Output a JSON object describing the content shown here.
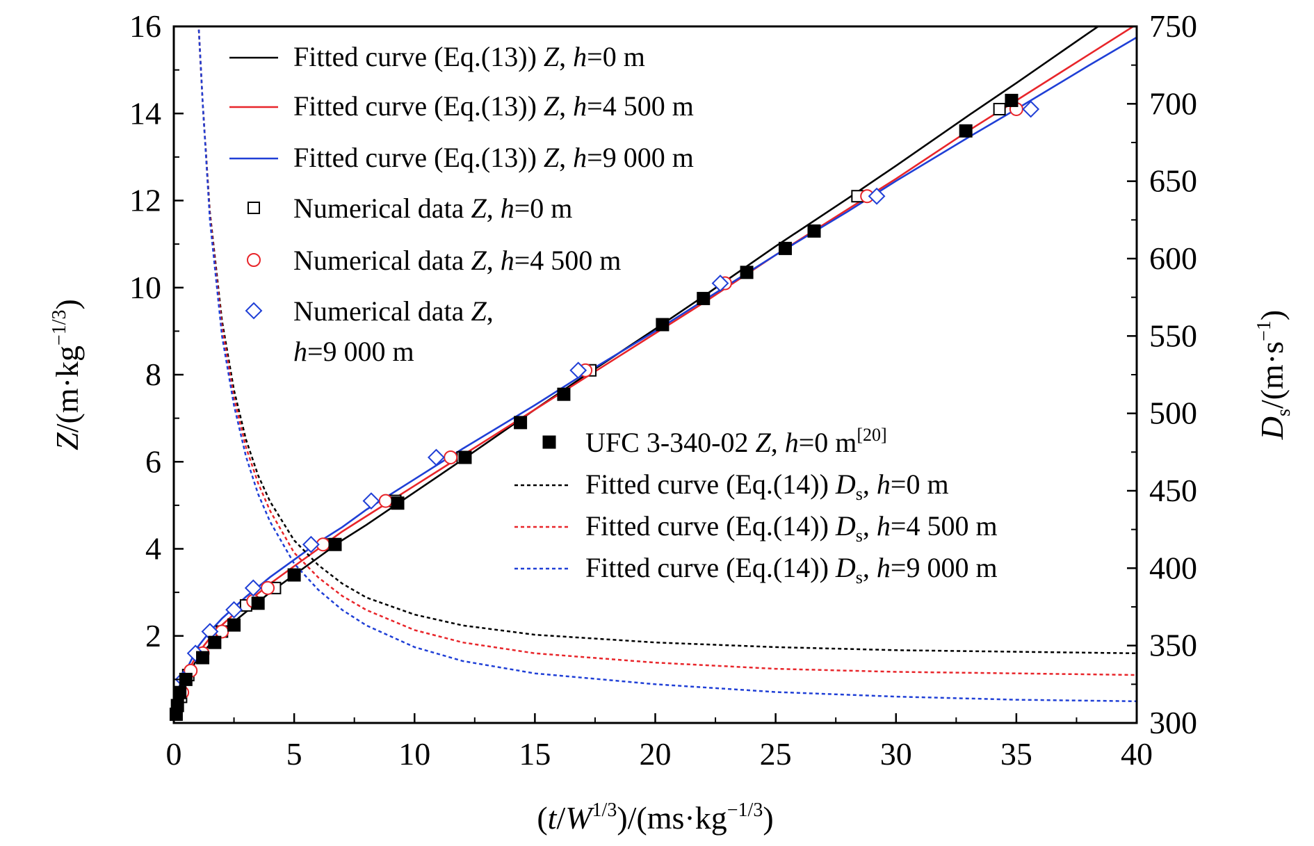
{
  "chart_data": {
    "type": "line",
    "xlabel": {
      "open": "(",
      "t": "t",
      "slash": "/",
      "W": "W",
      "sup": "1/3",
      "rest": ")/(ms·kg",
      "sup2": "−1/3",
      "close": ")"
    },
    "ylabel_left": {
      "Z": "Z",
      "rest": "/(m·kg",
      "sup": "−1/3",
      "close": ")"
    },
    "ylabel_right": {
      "D": "D",
      "sub": "s",
      "rest": "/(m·s",
      "sup": "−1",
      "close": ")"
    },
    "xlim": [
      0,
      40
    ],
    "ylim_left": [
      0,
      16
    ],
    "ylim_right": [
      300,
      750
    ],
    "xticks": [
      "0",
      "5",
      "10",
      "15",
      "20",
      "25",
      "30",
      "35",
      "40"
    ],
    "yticks_left": [
      "2",
      "4",
      "6",
      "8",
      "10",
      "12",
      "14",
      "16"
    ],
    "yticks_right": [
      "300",
      "350",
      "400",
      "450",
      "500",
      "550",
      "600",
      "650",
      "700",
      "750"
    ],
    "legend_upper": [
      {
        "key": "fz0",
        "parts": [
          "Fitted curve (Eq.(13)) ",
          "Z",
          ", ",
          "h",
          "=0 m"
        ]
      },
      {
        "key": "fz1",
        "parts": [
          "Fitted curve (Eq.(13)) ",
          "Z",
          ", ",
          "h",
          "=4 500 m"
        ]
      },
      {
        "key": "fz2",
        "parts": [
          "Fitted curve (Eq.(13)) ",
          "Z",
          ", ",
          "h",
          "=9 000 m"
        ]
      },
      {
        "key": "nz0",
        "parts": [
          "Numerical data ",
          "Z",
          ", ",
          "h",
          "=0 m"
        ]
      },
      {
        "key": "nz1",
        "parts": [
          "Numerical data ",
          "Z",
          ", ",
          "h",
          "=4 500 m"
        ]
      },
      {
        "key": "nz2",
        "parts": [
          "Numerical data ",
          "Z",
          ",",
          "h",
          "=9 000 m"
        ]
      }
    ],
    "legend_lower": [
      {
        "key": "ufc",
        "parts": [
          "UFC 3-340-02 ",
          "Z",
          ", ",
          "h",
          "=0 m",
          "[20]"
        ]
      },
      {
        "key": "fd0",
        "parts": [
          "Fitted curve (Eq.(14)) ",
          "D",
          "s",
          ", ",
          "h",
          "=0 m"
        ]
      },
      {
        "key": "fd1",
        "parts": [
          "Fitted curve (Eq.(14)) ",
          "D",
          "s",
          ", ",
          "h",
          "=4 500 m"
        ]
      },
      {
        "key": "fd2",
        "parts": [
          "Fitted curve (Eq.(14)) ",
          "D",
          "s",
          ", ",
          "h",
          "=9 000 m"
        ]
      }
    ],
    "colors": {
      "h0": "#000000",
      "h4500": "#e8252a",
      "h9000": "#1f3fd6"
    },
    "series": [
      {
        "key": "fz0",
        "name": "Fitted curve (Eq.(13)) Z, h=0 m",
        "axis": "left",
        "style": "solid",
        "color": "#000000",
        "x": [
          0.05,
          0.2,
          0.5,
          1,
          1.5,
          2,
          3,
          4,
          5,
          6,
          7,
          8,
          10,
          12,
          15,
          17,
          20,
          22,
          25,
          28,
          30,
          33,
          35,
          38,
          40
        ],
        "y": [
          0.25,
          0.6,
          1.0,
          1.5,
          1.8,
          2.1,
          2.55,
          3.0,
          3.4,
          3.8,
          4.2,
          4.55,
          5.3,
          6.05,
          7.2,
          7.95,
          9.05,
          9.8,
          10.95,
          12.05,
          12.8,
          13.95,
          14.7,
          15.85,
          16.6
        ]
      },
      {
        "key": "fz1",
        "name": "Fitted curve (Eq.(13)) Z, h=4 500 m",
        "axis": "left",
        "style": "solid",
        "color": "#e8252a",
        "x": [
          0.05,
          0.2,
          0.5,
          1,
          1.5,
          2,
          3,
          4,
          5,
          6,
          7,
          8,
          10,
          12,
          15,
          17,
          20,
          22,
          25,
          28,
          30,
          33,
          35,
          38,
          40
        ],
        "y": [
          0.3,
          0.7,
          1.1,
          1.6,
          1.95,
          2.25,
          2.75,
          3.2,
          3.6,
          4.0,
          4.4,
          4.75,
          5.45,
          6.15,
          7.2,
          7.9,
          8.95,
          9.65,
          10.75,
          11.8,
          12.5,
          13.6,
          14.3,
          15.35,
          16.05
        ]
      },
      {
        "key": "fz2",
        "name": "Fitted curve (Eq.(13)) Z, h=9 000 m",
        "axis": "left",
        "style": "solid",
        "color": "#1f3fd6",
        "x": [
          0.05,
          0.2,
          0.5,
          1,
          1.5,
          2,
          3,
          4,
          5,
          6,
          7,
          8,
          10,
          12,
          15,
          17,
          20,
          22,
          25,
          28,
          30,
          33,
          35,
          38,
          40
        ],
        "y": [
          0.35,
          0.8,
          1.2,
          1.75,
          2.1,
          2.4,
          2.9,
          3.35,
          3.75,
          4.15,
          4.5,
          4.9,
          5.6,
          6.3,
          7.3,
          8.0,
          9.0,
          9.7,
          10.75,
          11.75,
          12.45,
          13.45,
          14.1,
          15.1,
          15.75
        ]
      },
      {
        "key": "fd0",
        "name": "Fitted curve (Eq.(14)) Ds, h=0 m",
        "axis": "right",
        "style": "dotted",
        "color": "#000000",
        "x": [
          1.0,
          1.2,
          1.5,
          2,
          2.5,
          3,
          3.5,
          4,
          5,
          6,
          7,
          8,
          10,
          12,
          15,
          20,
          25,
          30,
          35,
          40
        ],
        "y": [
          760,
          700,
          630,
          560,
          515,
          483,
          460,
          443,
          418,
          402,
          390,
          381,
          370,
          363,
          357,
          352,
          349,
          347,
          346,
          345
        ]
      },
      {
        "key": "fd1",
        "name": "Fitted curve (Eq.(14)) Ds, h=4 500 m",
        "axis": "right",
        "style": "dotted",
        "color": "#e8252a",
        "x": [
          1.0,
          1.2,
          1.5,
          2,
          2.5,
          3,
          3.5,
          4,
          5,
          6,
          7,
          8,
          10,
          12,
          15,
          20,
          25,
          30,
          35,
          40
        ],
        "y": [
          760,
          700,
          628,
          556,
          510,
          478,
          455,
          437,
          410,
          394,
          382,
          373,
          360,
          352,
          345,
          339,
          335,
          333,
          332,
          331
        ]
      },
      {
        "key": "fd2",
        "name": "Fitted curve (Eq.(14)) Ds, h=9 000 m",
        "axis": "right",
        "style": "dotted",
        "color": "#1f3fd6",
        "x": [
          1.0,
          1.2,
          1.5,
          2,
          2.5,
          3,
          3.5,
          4,
          5,
          6,
          7,
          8,
          10,
          12,
          15,
          20,
          25,
          30,
          35,
          40
        ],
        "y": [
          760,
          700,
          625,
          550,
          505,
          472,
          448,
          430,
          403,
          386,
          373,
          363,
          349,
          340,
          332,
          325,
          320,
          317,
          315,
          314
        ]
      }
    ],
    "points": [
      {
        "key": "nz0",
        "name": "Numerical data Z, h=0 m",
        "marker": "square-open",
        "color": "#000000",
        "x": [
          0.3,
          0.6,
          1.1,
          2.0,
          3.0,
          4.2,
          6.4,
          9.2,
          12.0,
          17.3,
          28.4,
          34.3
        ],
        "y": [
          0.6,
          1.1,
          1.6,
          2.1,
          2.7,
          3.1,
          4.1,
          5.1,
          6.1,
          8.1,
          12.1,
          14.1
        ]
      },
      {
        "key": "nz1",
        "name": "Numerical data Z, h=4 500 m",
        "marker": "circle-open",
        "color": "#e8252a",
        "x": [
          0.35,
          0.7,
          1.2,
          2.0,
          3.3,
          3.9,
          6.2,
          8.8,
          11.5,
          17.1,
          22.9,
          28.8,
          35.0
        ],
        "y": [
          0.7,
          1.2,
          1.6,
          2.1,
          2.8,
          3.1,
          4.1,
          5.1,
          6.1,
          8.1,
          10.1,
          12.1,
          14.1
        ]
      },
      {
        "key": "nz2",
        "name": "Numerical data Z, h=9 000 m",
        "marker": "diamond-open",
        "color": "#1f3fd6",
        "x": [
          0.4,
          0.9,
          1.5,
          2.5,
          3.3,
          5.7,
          8.2,
          10.9,
          16.8,
          22.7,
          29.2,
          35.6
        ],
        "y": [
          1.0,
          1.6,
          2.1,
          2.6,
          3.1,
          4.1,
          5.1,
          6.1,
          8.1,
          10.1,
          12.1,
          14.1
        ]
      },
      {
        "key": "ufc",
        "name": "UFC 3-340-02 Z, h=0 m",
        "marker": "square-filled",
        "color": "#000000",
        "x": [
          0.1,
          0.15,
          0.25,
          0.5,
          1.2,
          1.7,
          2.5,
          3.5,
          5.0,
          6.7,
          9.3,
          12.1,
          14.4,
          16.2,
          20.3,
          22.0,
          23.8,
          25.4,
          26.6,
          32.9,
          34.8
        ],
        "y": [
          0.2,
          0.4,
          0.7,
          1.0,
          1.5,
          1.85,
          2.25,
          2.75,
          3.4,
          4.1,
          5.05,
          6.1,
          6.9,
          7.55,
          9.15,
          9.75,
          10.35,
          10.9,
          11.3,
          13.6,
          14.3
        ]
      }
    ]
  }
}
